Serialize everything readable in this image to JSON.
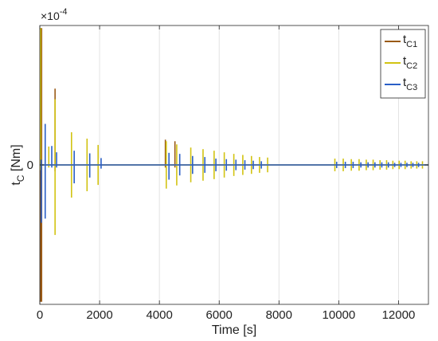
{
  "chart_data": {
    "type": "line",
    "xlabel": "Time [s]",
    "ylabel": {
      "main": "t",
      "sub": "C",
      "unit": " [Nm]"
    },
    "exponent_label": {
      "base": "×10",
      "power": "-4"
    },
    "xlim": [
      0,
      13000
    ],
    "ylim": [
      -2.65,
      2.65
    ],
    "xticks": [
      0,
      2000,
      4000,
      6000,
      8000,
      10000,
      12000
    ],
    "yticks": [
      0
    ],
    "grid": true,
    "legend_position": "top-right",
    "series": [
      {
        "name": "t",
        "sub": "C1",
        "color": "#9a5a16",
        "spikes": [
          {
            "x": 20,
            "pos": 2.6,
            "neg": -2.6
          },
          {
            "x": 60,
            "pos": 2.6,
            "neg": -2.6
          },
          {
            "x": 510,
            "pos": 1.45,
            "neg": -0.12
          },
          {
            "x": 4200,
            "pos": 0.48,
            "neg": -0.05
          },
          {
            "x": 4520,
            "pos": 0.45,
            "neg": -0.05
          }
        ]
      },
      {
        "name": "t",
        "sub": "C2",
        "color": "#d2c312",
        "spikes": [
          {
            "x": 30,
            "pos": 2.6,
            "neg": -0.1
          },
          {
            "x": 300,
            "pos": 0.35,
            "neg": -0.05
          },
          {
            "x": 510,
            "pos": 1.25,
            "neg": -1.33
          },
          {
            "x": 1060,
            "pos": 0.62,
            "neg": -0.62
          },
          {
            "x": 1580,
            "pos": 0.5,
            "neg": -0.5
          },
          {
            "x": 1950,
            "pos": 0.38,
            "neg": -0.38
          },
          {
            "x": 4230,
            "pos": 0.45,
            "neg": -0.45
          },
          {
            "x": 4580,
            "pos": 0.39,
            "neg": -0.39
          },
          {
            "x": 5050,
            "pos": 0.33,
            "neg": -0.33
          },
          {
            "x": 5460,
            "pos": 0.3,
            "neg": -0.3
          },
          {
            "x": 5830,
            "pos": 0.27,
            "neg": -0.27
          },
          {
            "x": 6170,
            "pos": 0.24,
            "neg": -0.24
          },
          {
            "x": 6490,
            "pos": 0.21,
            "neg": -0.21
          },
          {
            "x": 6790,
            "pos": 0.19,
            "neg": -0.19
          },
          {
            "x": 7080,
            "pos": 0.17,
            "neg": -0.17
          },
          {
            "x": 7350,
            "pos": 0.15,
            "neg": -0.15
          },
          {
            "x": 7620,
            "pos": 0.14,
            "neg": -0.14
          },
          {
            "x": 9870,
            "pos": 0.12,
            "neg": -0.12
          },
          {
            "x": 10150,
            "pos": 0.12,
            "neg": -0.12
          },
          {
            "x": 10420,
            "pos": 0.11,
            "neg": -0.11
          },
          {
            "x": 10680,
            "pos": 0.11,
            "neg": -0.11
          },
          {
            "x": 10920,
            "pos": 0.1,
            "neg": -0.1
          },
          {
            "x": 11150,
            "pos": 0.1,
            "neg": -0.1
          },
          {
            "x": 11380,
            "pos": 0.09,
            "neg": -0.09
          },
          {
            "x": 11600,
            "pos": 0.09,
            "neg": -0.09
          },
          {
            "x": 11810,
            "pos": 0.08,
            "neg": -0.08
          },
          {
            "x": 12020,
            "pos": 0.08,
            "neg": -0.08
          },
          {
            "x": 12220,
            "pos": 0.08,
            "neg": -0.08
          },
          {
            "x": 12420,
            "pos": 0.07,
            "neg": -0.07
          },
          {
            "x": 12610,
            "pos": 0.07,
            "neg": -0.07
          },
          {
            "x": 12800,
            "pos": 0.07,
            "neg": -0.07
          }
        ]
      },
      {
        "name": "t",
        "sub": "C3",
        "color": "#2a5fc7",
        "spikes": [
          {
            "x": 50,
            "pos": 0.1,
            "neg": -1.1
          },
          {
            "x": 180,
            "pos": 0.78,
            "neg": -1.02
          },
          {
            "x": 400,
            "pos": 0.36,
            "neg": -0.05
          },
          {
            "x": 560,
            "pos": 0.24,
            "neg": -0.05
          },
          {
            "x": 1150,
            "pos": 0.27,
            "neg": -0.35
          },
          {
            "x": 1670,
            "pos": 0.22,
            "neg": -0.24
          },
          {
            "x": 2050,
            "pos": 0.13,
            "neg": -0.07
          },
          {
            "x": 4320,
            "pos": 0.23,
            "neg": -0.28
          },
          {
            "x": 4680,
            "pos": 0.21,
            "neg": -0.2
          },
          {
            "x": 5110,
            "pos": 0.17,
            "neg": -0.17
          },
          {
            "x": 5520,
            "pos": 0.15,
            "neg": -0.15
          },
          {
            "x": 5890,
            "pos": 0.12,
            "neg": -0.12
          },
          {
            "x": 6240,
            "pos": 0.11,
            "neg": -0.11
          },
          {
            "x": 6560,
            "pos": 0.1,
            "neg": -0.1
          },
          {
            "x": 6860,
            "pos": 0.09,
            "neg": -0.09
          },
          {
            "x": 7140,
            "pos": 0.08,
            "neg": -0.08
          },
          {
            "x": 7410,
            "pos": 0.07,
            "neg": -0.07
          },
          {
            "x": 9930,
            "pos": 0.06,
            "neg": -0.06
          },
          {
            "x": 10220,
            "pos": 0.06,
            "neg": -0.06
          },
          {
            "x": 10480,
            "pos": 0.06,
            "neg": -0.06
          },
          {
            "x": 10740,
            "pos": 0.05,
            "neg": -0.05
          },
          {
            "x": 10980,
            "pos": 0.05,
            "neg": -0.05
          },
          {
            "x": 11210,
            "pos": 0.05,
            "neg": -0.05
          },
          {
            "x": 11440,
            "pos": 0.05,
            "neg": -0.05
          },
          {
            "x": 11660,
            "pos": 0.05,
            "neg": -0.05
          },
          {
            "x": 11870,
            "pos": 0.04,
            "neg": -0.04
          },
          {
            "x": 12080,
            "pos": 0.04,
            "neg": -0.04
          },
          {
            "x": 12280,
            "pos": 0.04,
            "neg": -0.04
          },
          {
            "x": 12480,
            "pos": 0.04,
            "neg": -0.04
          },
          {
            "x": 12670,
            "pos": 0.04,
            "neg": -0.04
          }
        ]
      }
    ]
  }
}
